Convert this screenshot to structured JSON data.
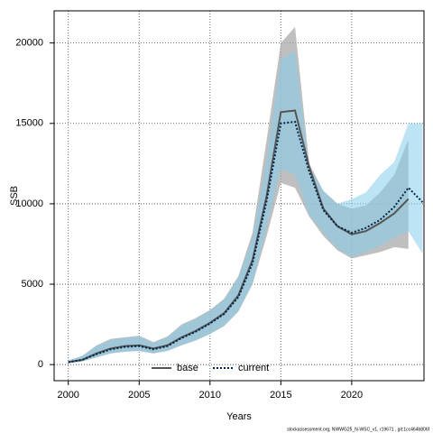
{
  "chart_data": {
    "type": "line",
    "xlabel": "Years",
    "ylabel": "SSB",
    "footer": "stockassessment.org, NWWG25_N-WSC_v1, r19671 , git:1cc464b806f",
    "x": [
      2000,
      2001,
      2002,
      2003,
      2004,
      2005,
      2006,
      2007,
      2008,
      2009,
      2010,
      2011,
      2012,
      2013,
      2014,
      2015,
      2016,
      2017,
      2018,
      2019,
      2020,
      2021,
      2022,
      2023,
      2024,
      2025
    ],
    "series": [
      {
        "name": "base",
        "color": "#555555",
        "band_color": "#a9a9a9",
        "dash": false,
        "values": [
          150,
          300,
          700,
          1000,
          1150,
          1200,
          1000,
          1200,
          1700,
          2100,
          2600,
          3200,
          4300,
          6500,
          10500,
          15700,
          15800,
          12300,
          9700,
          8600,
          8100,
          8300,
          8800,
          9400,
          10300,
          null
        ],
        "lower": [
          100,
          200,
          450,
          700,
          800,
          850,
          700,
          850,
          1200,
          1500,
          1900,
          2400,
          3300,
          5000,
          8000,
          11300,
          11000,
          9200,
          8000,
          7100,
          6600,
          6800,
          7000,
          7300,
          7200,
          null
        ],
        "upper": [
          250,
          550,
          1200,
          1600,
          1700,
          1800,
          1400,
          1750,
          2500,
          2900,
          3400,
          4100,
          5500,
          8200,
          14000,
          20000,
          21000,
          12500,
          10800,
          10000,
          9700,
          9900,
          10700,
          11800,
          14000,
          null
        ]
      },
      {
        "name": "current",
        "color": "#00264d",
        "band_color": "#87ceeb",
        "dash": true,
        "values": [
          150,
          300,
          650,
          950,
          1100,
          1150,
          950,
          1150,
          1650,
          2050,
          2550,
          3150,
          4200,
          6300,
          10200,
          15000,
          15100,
          12000,
          9600,
          8600,
          8200,
          8500,
          9000,
          9800,
          11000,
          10100
        ],
        "lower": [
          100,
          200,
          450,
          700,
          800,
          850,
          700,
          850,
          1200,
          1500,
          1900,
          2400,
          3300,
          5000,
          8500,
          12200,
          11800,
          9300,
          8200,
          7200,
          6700,
          7000,
          7400,
          7900,
          8300,
          6900
        ],
        "upper": [
          250,
          550,
          1150,
          1550,
          1650,
          1750,
          1350,
          1700,
          2450,
          2850,
          3350,
          4050,
          5400,
          7900,
          12800,
          19000,
          19500,
          12300,
          10800,
          10000,
          10300,
          10700,
          11800,
          12600,
          15000,
          15000
        ]
      }
    ],
    "xlim": [
      1999,
      2025.1
    ],
    "ylim": [
      -1000,
      22000
    ],
    "xticks": [
      2000,
      2005,
      2010,
      2015,
      2020
    ],
    "yticks": [
      0,
      5000,
      10000,
      15000,
      20000
    ],
    "grid": true,
    "legend": "bottom"
  }
}
